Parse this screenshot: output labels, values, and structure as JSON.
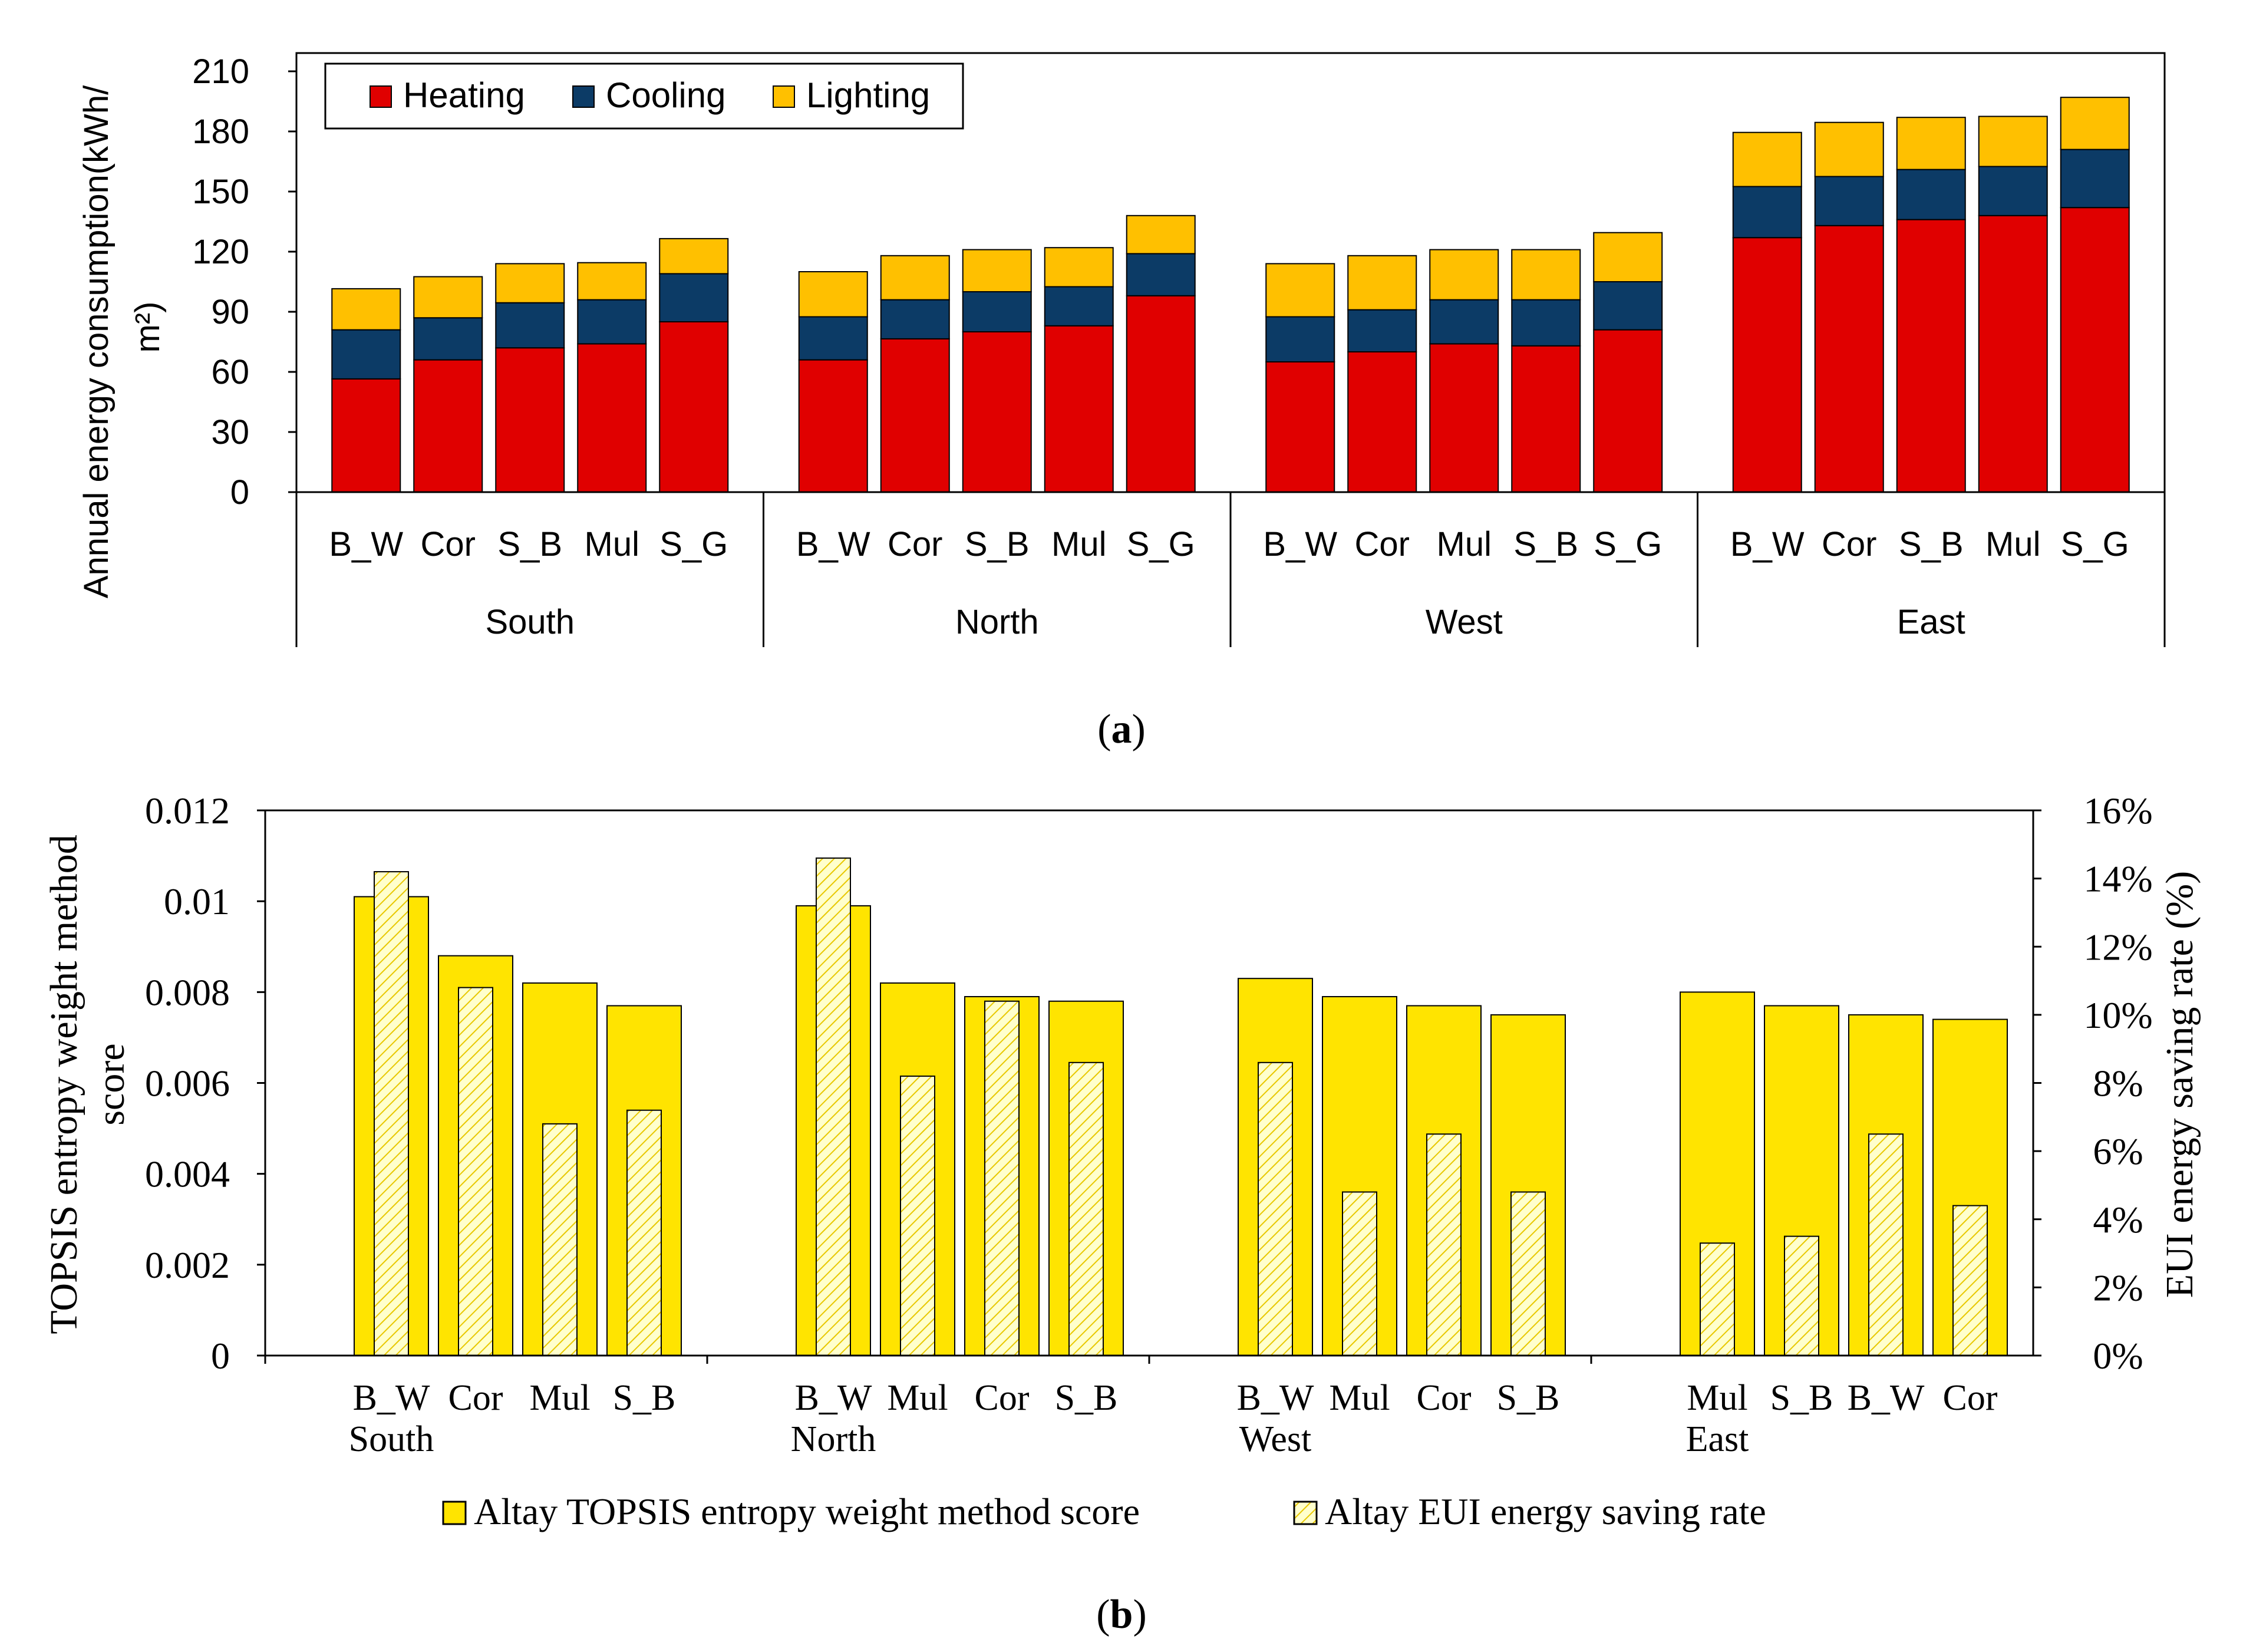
{
  "chart_data": [
    {
      "type": "bar",
      "stacked": true,
      "panel_label": "a",
      "ylabel": "Annual energy consumption(kWh/m²)",
      "ylabel_line1": "Annual energy consumption(kWh/",
      "ylabel_line2": "m²)",
      "ylim": [
        0,
        210
      ],
      "yticks": [
        "0",
        "30",
        "60",
        "90",
        "120",
        "150",
        "180",
        "210"
      ],
      "legend_position": "top-left",
      "colors": {
        "Heating": "#e00000",
        "Cooling": "#0c3b66",
        "Lighting": "#ffc000"
      },
      "groups": [
        {
          "name": "South",
          "categories": [
            "B_W",
            "Cor",
            "S_B",
            "Mul",
            "S_G"
          ]
        },
        {
          "name": "North",
          "categories": [
            "B_W",
            "Cor",
            "S_B",
            "Mul",
            "S_G"
          ]
        },
        {
          "name": "West",
          "categories": [
            "B_W",
            "Cor",
            "Mul",
            "S_B",
            "S_G"
          ]
        },
        {
          "name": "East",
          "categories": [
            "B_W",
            "Cor",
            "S_B",
            "Mul",
            "S_G"
          ]
        }
      ],
      "series": [
        {
          "name": "Heating",
          "values": [
            56.5,
            66,
            72,
            74,
            85,
            66,
            76.5,
            80,
            83,
            98,
            65,
            70,
            74,
            73,
            81,
            127,
            133,
            136,
            138,
            142
          ]
        },
        {
          "name": "Cooling",
          "values": [
            24.5,
            21,
            22.5,
            22,
            24,
            21.5,
            19.5,
            20,
            19.5,
            21,
            22.5,
            21,
            22,
            23,
            24,
            25.5,
            24.5,
            25,
            24.5,
            29
          ]
        },
        {
          "name": "Lighting",
          "values": [
            20.5,
            20.5,
            19.5,
            18.5,
            17.5,
            22.5,
            22,
            21,
            19.5,
            19,
            26.5,
            27,
            25,
            25,
            24.5,
            27,
            27,
            26,
            25,
            26
          ]
        }
      ]
    },
    {
      "type": "bar",
      "panel_label": "b",
      "ylabel": "TOPSIS entropy weight method score",
      "ylabel_line1": "TOPSIS entropy weight method",
      "ylabel_line2": "score",
      "y2label": "EUI energy saving rate (%)",
      "ylim": [
        0,
        0.012
      ],
      "y2lim": [
        0,
        16
      ],
      "yticks": [
        "0",
        "0.002",
        "0.004",
        "0.006",
        "0.008",
        "0.01",
        "0.012"
      ],
      "y2ticks": [
        "0%",
        "2%",
        "4%",
        "6%",
        "8%",
        "10%",
        "12%",
        "14%",
        "16%"
      ],
      "colors": {
        "score": "#ffe400",
        "saving": "#ffffcc"
      },
      "groups": [
        {
          "name": "South",
          "categories": [
            "B_W",
            "Cor",
            "Mul",
            "S_B"
          ]
        },
        {
          "name": "North",
          "categories": [
            "B_W",
            "Mul",
            "Cor",
            "S_B"
          ]
        },
        {
          "name": "West",
          "categories": [
            "B_W",
            "Mul",
            "Cor",
            "S_B"
          ]
        },
        {
          "name": "East",
          "categories": [
            "Mul",
            "S_B",
            "B_W",
            "Cor"
          ]
        }
      ],
      "series": [
        {
          "name": "Altay TOPSIS entropy weight method score",
          "axis": "left",
          "values": [
            0.0101,
            0.0088,
            0.0082,
            0.0077,
            0.0099,
            0.0082,
            0.0079,
            0.0078,
            0.0083,
            0.0079,
            0.0077,
            0.0075,
            0.008,
            0.0077,
            0.0075,
            0.0074
          ]
        },
        {
          "name": "Altay EUI energy saving rate",
          "axis": "right",
          "values": [
            14.2,
            10.8,
            6.8,
            7.2,
            14.6,
            8.2,
            10.4,
            8.6,
            8.6,
            4.8,
            6.5,
            4.8,
            3.3,
            3.5,
            6.5,
            4.4
          ]
        }
      ]
    }
  ]
}
